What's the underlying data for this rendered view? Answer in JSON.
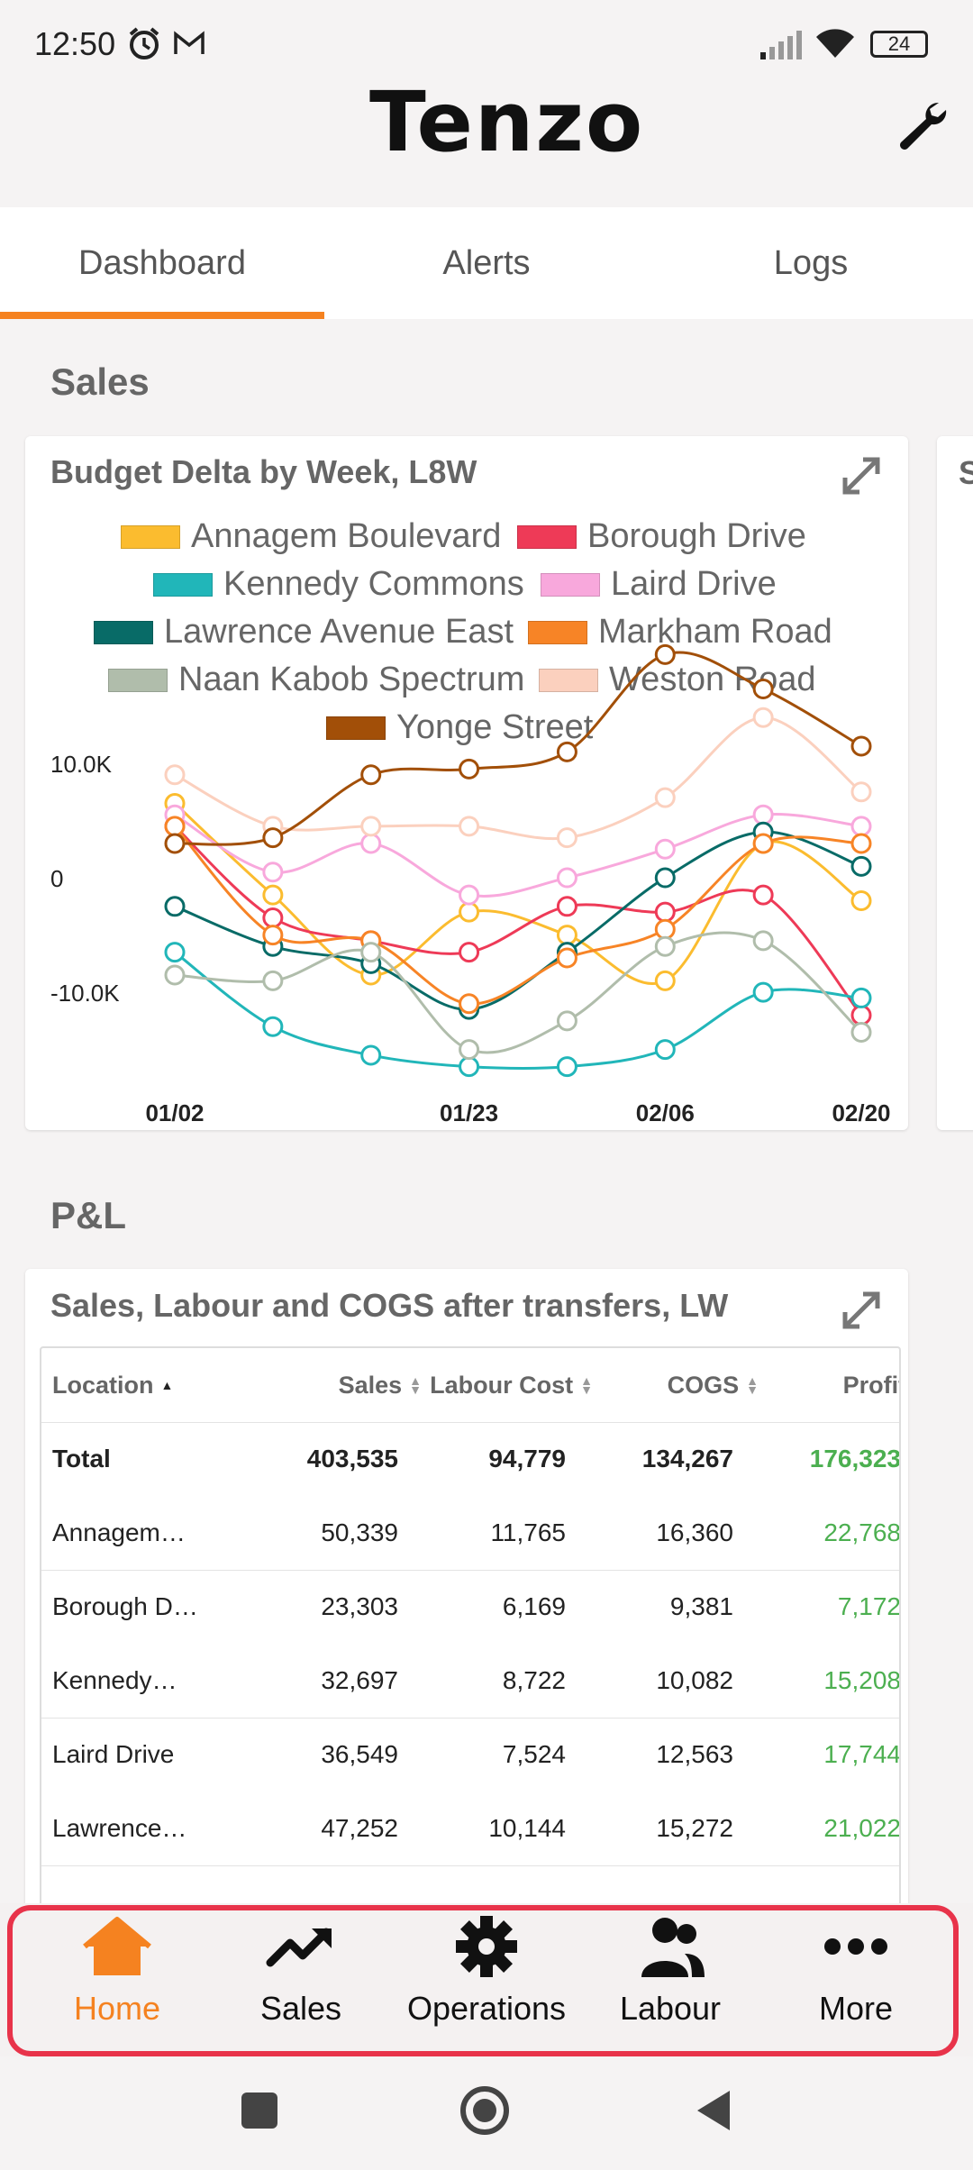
{
  "status_bar": {
    "time": "12:50",
    "battery": "24"
  },
  "header": {
    "logo": "Tenzo"
  },
  "tabs": [
    {
      "label": "Dashboard",
      "active": true
    },
    {
      "label": "Alerts",
      "active": false
    },
    {
      "label": "Logs",
      "active": false
    }
  ],
  "sales_section": {
    "title": "Sales",
    "card_title": "Budget Delta by Week, L8W",
    "next_card_peek": "S"
  },
  "chart_data": {
    "type": "line",
    "title": "Budget Delta by Week, L8W",
    "x_ticks": [
      "01/02",
      "01/23",
      "02/06",
      "02/20"
    ],
    "x": [
      "01/02",
      "01/09",
      "01/16",
      "01/23",
      "01/30",
      "02/06",
      "02/13",
      "02/20"
    ],
    "y_ticks": [
      "10.0K",
      "0",
      "-10.0K"
    ],
    "ylim": [
      -17000,
      20000
    ],
    "series": [
      {
        "name": "Annagem Boulevard",
        "color": "#fbbc2f",
        "values": [
          6500,
          -1500,
          -8500,
          -3000,
          -5000,
          -9000,
          3000,
          -2000
        ]
      },
      {
        "name": "Borough Drive",
        "color": "#ee3a57",
        "values": [
          4500,
          -3500,
          -5500,
          -6500,
          -2500,
          -3000,
          -1500,
          -12000
        ]
      },
      {
        "name": "Kennedy Commons",
        "color": "#21b6b9",
        "values": [
          -6500,
          -13000,
          -15500,
          -16500,
          -16500,
          -15000,
          -10000,
          -10500
        ]
      },
      {
        "name": "Laird Drive",
        "color": "#f8a8dc",
        "values": [
          5500,
          500,
          3000,
          -1500,
          0,
          2500,
          5500,
          4500
        ]
      },
      {
        "name": "Lawrence Avenue East",
        "color": "#086b67",
        "values": [
          -2500,
          -6000,
          -7500,
          -11500,
          -6500,
          0,
          4000,
          1000
        ]
      },
      {
        "name": "Markham Road",
        "color": "#f78426",
        "values": [
          4500,
          -5000,
          -5500,
          -11000,
          -7000,
          -4500,
          3000,
          3000
        ]
      },
      {
        "name": "Naan Kabob Spectrum",
        "color": "#b0bdab",
        "values": [
          -8500,
          -9000,
          -6500,
          -15000,
          -12500,
          -6000,
          -5500,
          -13500
        ]
      },
      {
        "name": "Weston Road",
        "color": "#fbd0be",
        "values": [
          9000,
          4500,
          4500,
          4500,
          3500,
          7000,
          14000,
          7500
        ]
      },
      {
        "name": "Yonge Street",
        "color": "#a24f08",
        "values": [
          3000,
          3500,
          9000,
          9500,
          11000,
          19500,
          16500,
          11500
        ]
      }
    ]
  },
  "pl_section": {
    "title": "P&L",
    "card_title": "Sales, Labour and COGS after transfers, LW",
    "columns": [
      "Location",
      "Sales",
      "Labour Cost",
      "COGS",
      "Profit"
    ],
    "total": {
      "location": "Total",
      "sales": "403,535",
      "labour": "94,779",
      "cogs": "134,267",
      "profit": "176,323"
    },
    "rows": [
      {
        "location": "Annagem…",
        "sales": "50,339",
        "labour": "11,765",
        "cogs": "16,360",
        "profit": "22,768"
      },
      {
        "location": "Borough D…",
        "sales": "23,303",
        "labour": "6,169",
        "cogs": "9,381",
        "profit": "7,172"
      },
      {
        "location": "Kennedy…",
        "sales": "32,697",
        "labour": "8,722",
        "cogs": "10,082",
        "profit": "15,208"
      },
      {
        "location": "Laird Drive",
        "sales": "36,549",
        "labour": "7,524",
        "cogs": "12,563",
        "profit": "17,744"
      },
      {
        "location": "Lawrence…",
        "sales": "47,252",
        "labour": "10,144",
        "cogs": "15,272",
        "profit": "21,022"
      }
    ]
  },
  "bottom_nav": [
    {
      "label": "Home",
      "icon": "home-icon",
      "active": true
    },
    {
      "label": "Sales",
      "icon": "trending-up-icon",
      "active": false
    },
    {
      "label": "Operations",
      "icon": "gear-icon",
      "active": false
    },
    {
      "label": "Labour",
      "icon": "people-icon",
      "active": false
    },
    {
      "label": "More",
      "icon": "more-dots-icon",
      "active": false
    }
  ],
  "colors": {
    "accent": "#f58220",
    "profit_green": "#4caf50",
    "highlight_border": "#e8334a"
  }
}
